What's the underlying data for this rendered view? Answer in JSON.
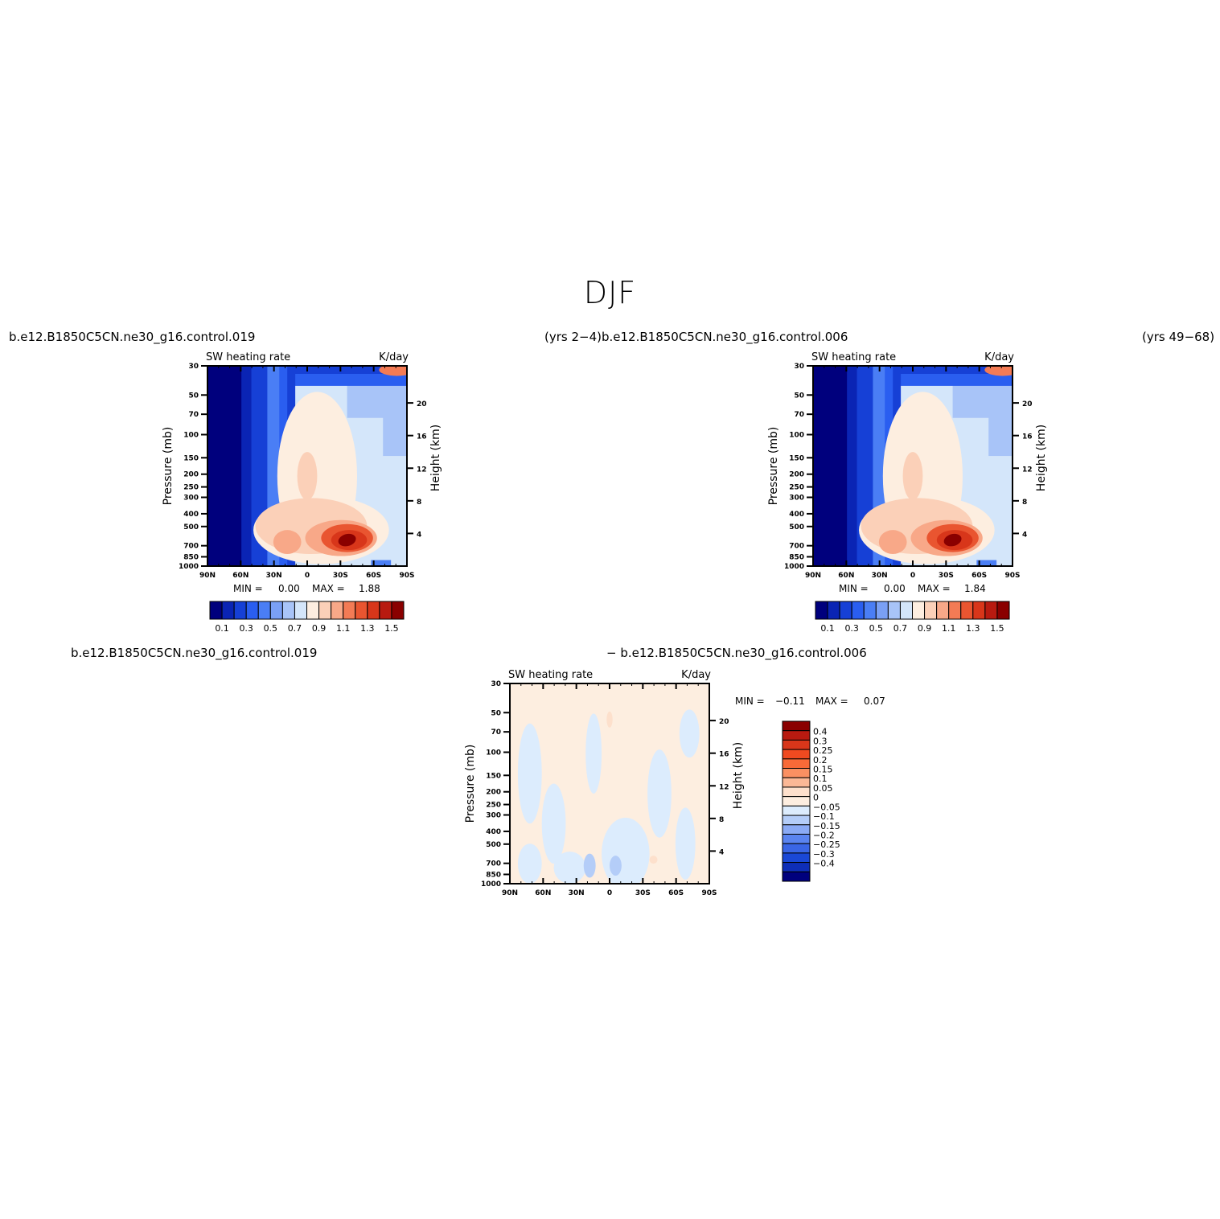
{
  "figure": {
    "title": "DJF",
    "case_top_left": "b.e12.B1850C5CN.ne30_g16.control.019",
    "case_top_right": "(yrs 2−4)b.e12.B1850C5CN.ne30_g16.control.006",
    "case_top_far_right": "(yrs 49−68)",
    "case_bottom_left": "b.e12.B1850C5CN.ne30_g16.control.019",
    "case_bottom_right": "− b.e12.B1850C5CN.ne30_g16.control.006"
  },
  "chart_data": [
    {
      "type": "heatmap",
      "panel": "control.019",
      "left_title": "SW heating rate",
      "right_title": "K/day",
      "ylabel": "Pressure (mb)",
      "ylabel_right": "Height (km)",
      "x_ticks": [
        "90N",
        "60N",
        "30N",
        "0",
        "30S",
        "60S",
        "90S"
      ],
      "y_ticks": [
        "30",
        "50",
        "70",
        "100",
        "150",
        "200",
        "250",
        "300",
        "400",
        "500",
        "700",
        "850",
        "1000"
      ],
      "y_ticks_right": [
        "20",
        "16",
        "12",
        "8",
        "4"
      ],
      "xlim": [
        90,
        -90
      ],
      "ylim": [
        1000,
        30
      ],
      "stats": {
        "min_label": "MIN =",
        "min": "0.00",
        "max_label": "MAX =",
        "max": "1.88"
      },
      "colorbar": {
        "orientation": "horizontal",
        "levels": [
          0.1,
          0.2,
          0.3,
          0.4,
          0.5,
          0.6,
          0.7,
          0.8,
          0.9,
          1.0,
          1.1,
          1.2,
          1.3,
          1.4,
          1.5
        ],
        "tick_labels": [
          "0.1",
          "0.3",
          "0.5",
          "0.7",
          "0.9",
          "1.1",
          "1.3",
          "1.5"
        ],
        "colors": [
          "#00007d",
          "#0a24b4",
          "#1640d6",
          "#2a5ef0",
          "#4a7ef5",
          "#7aa0f5",
          "#a8c4f8",
          "#d4e6fa",
          "#fdeee0",
          "#fbd0b8",
          "#f8a888",
          "#f37b55",
          "#e95530",
          "#d8361a",
          "#b81a10",
          "#8a0000"
        ]
      }
    },
    {
      "type": "heatmap",
      "panel": "control.006",
      "left_title": "SW heating rate",
      "right_title": "K/day",
      "ylabel": "Pressure (mb)",
      "ylabel_right": "Height (km)",
      "x_ticks": [
        "90N",
        "60N",
        "30N",
        "0",
        "30S",
        "60S",
        "90S"
      ],
      "y_ticks": [
        "30",
        "50",
        "70",
        "100",
        "150",
        "200",
        "250",
        "300",
        "400",
        "500",
        "700",
        "850",
        "1000"
      ],
      "y_ticks_right": [
        "20",
        "16",
        "12",
        "8",
        "4"
      ],
      "xlim": [
        90,
        -90
      ],
      "ylim": [
        1000,
        30
      ],
      "stats": {
        "min_label": "MIN =",
        "min": "0.00",
        "max_label": "MAX =",
        "max": "1.84"
      },
      "colorbar": {
        "orientation": "horizontal",
        "levels": [
          0.1,
          0.2,
          0.3,
          0.4,
          0.5,
          0.6,
          0.7,
          0.8,
          0.9,
          1.0,
          1.1,
          1.2,
          1.3,
          1.4,
          1.5
        ],
        "tick_labels": [
          "0.1",
          "0.3",
          "0.5",
          "0.7",
          "0.9",
          "1.1",
          "1.3",
          "1.5"
        ],
        "colors": [
          "#00007d",
          "#0a24b4",
          "#1640d6",
          "#2a5ef0",
          "#4a7ef5",
          "#7aa0f5",
          "#a8c4f8",
          "#d4e6fa",
          "#fdeee0",
          "#fbd0b8",
          "#f8a888",
          "#f37b55",
          "#e95530",
          "#d8361a",
          "#b81a10",
          "#8a0000"
        ]
      }
    },
    {
      "type": "heatmap",
      "panel": "difference",
      "left_title": "SW heating rate",
      "right_title": "K/day",
      "ylabel": "Pressure (mb)",
      "ylabel_right": "Height (km)",
      "x_ticks": [
        "90N",
        "60N",
        "30N",
        "0",
        "30S",
        "60S",
        "90S"
      ],
      "y_ticks": [
        "30",
        "50",
        "70",
        "100",
        "150",
        "200",
        "250",
        "300",
        "400",
        "500",
        "700",
        "850",
        "1000"
      ],
      "y_ticks_right": [
        "20",
        "16",
        "12",
        "8",
        "4"
      ],
      "xlim": [
        90,
        -90
      ],
      "ylim": [
        1000,
        30
      ],
      "stats": {
        "min_label": "MIN =",
        "min": "−0.11",
        "max_label": "MAX =",
        "max": "0.07"
      },
      "colorbar": {
        "orientation": "vertical",
        "labels_top_to_bottom": [
          "0.4",
          "0.3",
          "0.25",
          "0.2",
          "0.15",
          "0.1",
          "0.05",
          "0",
          "−0.05",
          "−0.1",
          "−0.15",
          "−0.2",
          "−0.25",
          "−0.3",
          "−0.4"
        ],
        "colors_top_to_bottom": [
          "#8a0000",
          "#b81a10",
          "#d8361a",
          "#f04a20",
          "#f86a38",
          "#fa9062",
          "#fbb896",
          "#fde0cc",
          "#fdeee0",
          "#dcecfd",
          "#b4cdf8",
          "#8aaaf5",
          "#5a84f0",
          "#3a66e6",
          "#1a48d6",
          "#0e2eb8",
          "#00007d"
        ]
      }
    }
  ]
}
